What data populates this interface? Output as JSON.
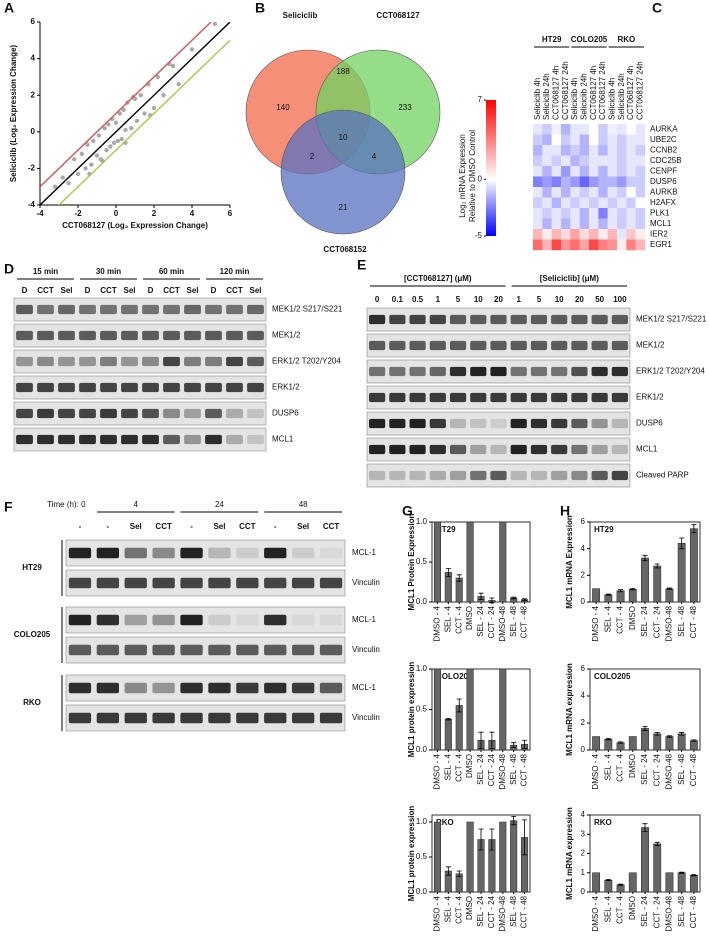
{
  "chart_data": [
    {
      "type": "scatter",
      "panel": "A",
      "x_label": "CCT068127 (Log₂ Expression Change)",
      "y_label": "Seliciclib (Log₂ Expression Change)",
      "xlim": [
        -4,
        6
      ],
      "ylim": [
        -4,
        6
      ],
      "xticks": [
        -4,
        -2,
        0,
        2,
        4,
        6
      ],
      "yticks": [
        -4,
        -2,
        0,
        2,
        4,
        6
      ],
      "color": "#aaaaaa",
      "x": [
        -2.8,
        -2.5,
        -2.2,
        -2,
        -1.8,
        -1.6,
        -1.5,
        -1.3,
        -1.2,
        -1,
        -0.9,
        -0.8,
        -0.6,
        -0.5,
        -0.4,
        -0.3,
        -0.2,
        -0.1,
        0,
        0.1,
        0.2,
        0.3,
        0.4,
        0.5,
        0.6,
        0.8,
        1,
        1.1,
        1.3,
        1.5,
        1.7,
        2,
        2.2,
        2.5,
        3,
        3.3,
        4,
        -0.7,
        0.9,
        1.8,
        -1.4,
        0.5,
        2.8,
        5.2,
        -3.2
      ],
      "y": [
        -2.5,
        -2.8,
        -1.5,
        -2.3,
        -1.2,
        -2,
        -0.7,
        -1.8,
        -0.5,
        -1.3,
        -0.2,
        -1.5,
        0.2,
        -1,
        0.4,
        -0.8,
        0.7,
        -0.6,
        0.5,
        -0.5,
        1,
        -0.4,
        1.2,
        0.1,
        1.6,
        0.2,
        1.8,
        0.6,
        2,
        1,
        2.6,
        1.3,
        3,
        2,
        3.6,
        2.6,
        4.5,
        -1.6,
        1.9,
        0.9,
        -2.3,
        -0.6,
        3.7,
        5.9,
        -3
      ],
      "lines": [
        {
          "color": "#d9534f",
          "slope": 1,
          "intercept": 1
        },
        {
          "color": "#000000",
          "slope": 1,
          "intercept": 0
        },
        {
          "color": "#b5c24a",
          "slope": 1,
          "intercept": -1
        }
      ]
    },
    {
      "type": "venn",
      "panel": "B",
      "sets": [
        {
          "name": "Seliciclib",
          "color": "#f26a4b"
        },
        {
          "name": "CCT068127",
          "color": "#72d160"
        },
        {
          "name": "CCT068152",
          "color": "#5870c0"
        }
      ],
      "regions": [
        {
          "sets": [
            "Seliciclib"
          ],
          "value": 140
        },
        {
          "sets": [
            "Seliciclib",
            "CCT068127"
          ],
          "value": 188
        },
        {
          "sets": [
            "CCT068127"
          ],
          "value": 233
        },
        {
          "sets": [
            "Seliciclib",
            "CCT068127",
            "CCT068152"
          ],
          "value": 10
        },
        {
          "sets": [
            "Seliciclib",
            "CCT068152"
          ],
          "value": 2
        },
        {
          "sets": [
            "CCT068127",
            "CCT068152"
          ],
          "value": 4
        },
        {
          "sets": [
            "CCT068152"
          ],
          "value": 21
        }
      ]
    },
    {
      "type": "heatmap",
      "panel": "C",
      "groups": [
        "HT29",
        "COLO205",
        "RKO"
      ],
      "columns": [
        "Seliciclib 4h",
        "Seliciclib 24h",
        "CCT068127 4h",
        "CCT068127 24h",
        "Seliciclib 4h",
        "Seliciclib 24h",
        "CCT068127 4h",
        "CCT068127 24h",
        "Seliciclib 4h",
        "Seliciclib 24h",
        "CCT068127 4h",
        "CCT068127 24h"
      ],
      "rows": [
        "AURKA",
        "UBE2C",
        "CCNB2",
        "CDC25B",
        "CENPF",
        "DUSP6",
        "AURKB",
        "H2AFX",
        "PLK1",
        "MCL1",
        "IER2",
        "EGR1"
      ],
      "values": [
        [
          -0.5,
          -1,
          -0.3,
          -1.5,
          -0.5,
          -0.5,
          0,
          -1,
          -0.3,
          -0.5,
          0,
          -0.5
        ],
        [
          -1,
          -1.5,
          0,
          -1,
          -0.5,
          -1.5,
          0,
          -1,
          -0.5,
          -1,
          -0.5,
          -0.5
        ],
        [
          -1.5,
          -0.5,
          -0.5,
          -1.5,
          -1,
          -1.5,
          -0.5,
          -1.5,
          -0.5,
          -1,
          -0.5,
          -1
        ],
        [
          -1,
          -0.5,
          -1,
          -0.5,
          -1.5,
          -1,
          -0.5,
          -0.5,
          -0.5,
          -1,
          -0.5,
          -0.5
        ],
        [
          -0.5,
          -1.5,
          -0.5,
          -2,
          -0.5,
          -1.5,
          -0.5,
          -1.5,
          -0.5,
          -1,
          -0.5,
          -1
        ],
        [
          -2.5,
          -2,
          -2.5,
          -1.5,
          -2,
          -3,
          -2,
          -1.5,
          -1.5,
          -2,
          -1,
          -1
        ],
        [
          -0.5,
          -1.5,
          -0.5,
          -1.5,
          -0.5,
          -1,
          -0.5,
          -1.5,
          -0.5,
          -1,
          0,
          -1
        ],
        [
          -1,
          -0.5,
          -1.5,
          -0.5,
          -1,
          -0.5,
          -1,
          -0.5,
          -1,
          -0.5,
          -1,
          0
        ],
        [
          -0.5,
          -1,
          -0.5,
          -1,
          -0.5,
          -1.5,
          -0.5,
          -2.5,
          -0.5,
          -1,
          -0.5,
          -1
        ],
        [
          -0.5,
          -1.5,
          -0.5,
          -1.5,
          -0.5,
          -1.5,
          -0.5,
          -1.5,
          -0.5,
          -1,
          -0.5,
          -1
        ],
        [
          2,
          0.5,
          2,
          1,
          2.5,
          1,
          2,
          0.5,
          2,
          -0.5,
          1.5,
          0.5
        ],
        [
          4,
          2,
          5,
          3,
          4,
          2.5,
          5,
          3.5,
          3,
          0.5,
          3.5,
          2
        ]
      ],
      "zlim": [
        -5,
        7
      ],
      "zticks": [
        7,
        0,
        -5
      ],
      "colors": [
        "#0000ff",
        "#ffffff",
        "#ff0000"
      ],
      "colorbar_label": [
        "Log₂ mRNA Expression",
        "Relative to DMSO Control"
      ]
    },
    {
      "type": "bar",
      "panel": "G",
      "title": "HT29",
      "y_label": "MCL1 Protein Expression",
      "categories": [
        "DMSO - 4",
        "SEL - 4",
        "CCT - 4",
        "DMSO",
        "SEL - 24",
        "CCT - 24",
        "DMSO-48",
        "SEL - 48",
        "CCT - 48"
      ],
      "values": [
        1,
        0.37,
        0.3,
        1,
        0.07,
        0.02,
        1,
        0.05,
        0.03
      ],
      "errors": [
        0,
        0.05,
        0.04,
        0,
        0.04,
        0.03,
        0,
        0.01,
        0.01
      ],
      "ylim": [
        0,
        1
      ],
      "yticks": [
        {
          "value": 0,
          "label": "0.0"
        },
        {
          "value": 0.5,
          "label": "0.5"
        },
        {
          "value": 1,
          "label": "1.0"
        }
      ],
      "color": "#666666"
    },
    {
      "type": "bar",
      "title": "COLO205",
      "y_label": "MCL1 protein expression",
      "categories": [
        "DMSO - 4",
        "SEL - 4",
        "CCT - 4",
        "DMSO",
        "SEL - 24",
        "CCT - 24",
        "DMSO-48",
        "SEL - 48",
        "CCT - 48"
      ],
      "values": [
        1,
        0.38,
        0.55,
        1,
        0.12,
        0.12,
        1,
        0.06,
        0.07
      ],
      "errors": [
        0,
        0.01,
        0.08,
        0,
        0.1,
        0.1,
        0,
        0.03,
        0.05
      ],
      "ylim": [
        0,
        1
      ],
      "yticks": [
        {
          "value": 0,
          "label": "0.0"
        },
        {
          "value": 0.5,
          "label": "0.5"
        },
        {
          "value": 1,
          "label": "1.0"
        }
      ],
      "color": "#666666"
    },
    {
      "type": "bar",
      "title": "RKO",
      "y_label": "MCL1 protein expression",
      "categories": [
        "DMSO - 4",
        "SEL - 4",
        "CCT - 4",
        "DMSO",
        "SEL - 24",
        "CCT - 24",
        "DMSO-48",
        "SEL - 48",
        "CCT - 48"
      ],
      "values": [
        1,
        0.3,
        0.26,
        1,
        0.75,
        0.75,
        1,
        1.02,
        0.78
      ],
      "errors": [
        0,
        0.06,
        0.04,
        0,
        0.15,
        0.15,
        0,
        0.06,
        0.25
      ],
      "ylim": [
        0,
        1.1
      ],
      "yticks": [
        {
          "value": 0,
          "label": "0.0"
        },
        {
          "value": 0.5,
          "label": "0.5"
        },
        {
          "value": 1,
          "label": "1.0"
        }
      ],
      "color": "#666666"
    },
    {
      "type": "bar",
      "panel": "H",
      "title": "HT29",
      "y_label": "MCL1 mRNA Expression",
      "categories": [
        "DMSO - 4",
        "SEL - 4",
        "CCT - 4",
        "DMSO",
        "SEL - 24",
        "CCT - 24",
        "DMSO-48",
        "SEL - 48",
        "CCT - 48"
      ],
      "values": [
        1,
        0.55,
        0.85,
        0.95,
        3.3,
        2.7,
        1,
        4.4,
        5.5
      ],
      "errors": [
        0,
        0.05,
        0.08,
        0.05,
        0.2,
        0.15,
        0.05,
        0.4,
        0.3
      ],
      "ylim": [
        0,
        6
      ],
      "yticks": [
        0,
        2,
        4,
        6
      ],
      "color": "#666666"
    },
    {
      "type": "bar",
      "title": "COLO205",
      "y_label": "MCL1 mRNA expression",
      "categories": [
        "DMSO - 4",
        "SEL - 4",
        "CCT - 4",
        "DMSO",
        "SEL - 24",
        "CCT - 24",
        "DMSO-48",
        "SEL - 48",
        "CCT - 48"
      ],
      "values": [
        1,
        0.8,
        0.55,
        1,
        1.6,
        1.2,
        1,
        1.2,
        0.7
      ],
      "errors": [
        0,
        0.05,
        0.05,
        0,
        0.15,
        0.1,
        0.05,
        0.1,
        0.05
      ],
      "ylim": [
        0,
        6
      ],
      "yticks": [
        0,
        2,
        4,
        6
      ],
      "color": "#666666"
    },
    {
      "type": "bar",
      "title": "RKO",
      "y_label": "MCL1 mRNA expression",
      "categories": [
        "DMSO - 4",
        "SEL - 4",
        "CCT - 4",
        "DMSO",
        "SEL - 24",
        "CCT - 24",
        "DMSO-48",
        "SEL - 48",
        "CCT - 48"
      ],
      "values": [
        1,
        0.62,
        0.38,
        1,
        3.35,
        2.5,
        1,
        1,
        0.87
      ],
      "errors": [
        0,
        0.03,
        0.03,
        0,
        0.2,
        0.08,
        0,
        0.03,
        0.03
      ],
      "ylim": [
        0,
        4
      ],
      "yticks": [
        0,
        1,
        2,
        3,
        4
      ],
      "color": "#666666"
    }
  ],
  "blots": {
    "D": {
      "panel": "D",
      "groups": [
        "15 min",
        "30 min",
        "60 min",
        "120 min"
      ],
      "lanes": [
        "D",
        "CCT",
        "Sel",
        "D",
        "CCT",
        "Sel",
        "D",
        "CCT",
        "Sel",
        "D",
        "CCT",
        "Sel"
      ],
      "rows": [
        {
          "label": "MEK1/2 S217/S221",
          "intensity": [
            0.6,
            0.5,
            0.55,
            0.5,
            0.5,
            0.5,
            0.5,
            0.5,
            0.55,
            0.5,
            0.5,
            0.55
          ]
        },
        {
          "label": "MEK1/2",
          "intensity": [
            0.6,
            0.6,
            0.6,
            0.6,
            0.6,
            0.6,
            0.6,
            0.6,
            0.6,
            0.6,
            0.6,
            0.6
          ]
        },
        {
          "label": "ERK1/2 T202/Y204",
          "intensity": [
            0.35,
            0.4,
            0.35,
            0.35,
            0.45,
            0.35,
            0.4,
            0.7,
            0.45,
            0.45,
            0.7,
            0.6
          ]
        },
        {
          "label": "ERK1/2",
          "intensity": [
            0.7,
            0.7,
            0.7,
            0.7,
            0.7,
            0.7,
            0.7,
            0.7,
            0.7,
            0.7,
            0.7,
            0.7
          ]
        },
        {
          "label": "DUSP6",
          "intensity": [
            0.7,
            0.75,
            0.7,
            0.7,
            0.75,
            0.7,
            0.65,
            0.4,
            0.3,
            0.6,
            0.25,
            0.15
          ]
        },
        {
          "label": "MCL1",
          "intensity": [
            0.8,
            0.8,
            0.8,
            0.8,
            0.8,
            0.8,
            0.8,
            0.6,
            0.35,
            0.8,
            0.25,
            0.15
          ]
        }
      ]
    },
    "E": {
      "panel": "E",
      "groups": [
        "[CCT068127] (μM)",
        "[Seliciclib] (μM)"
      ],
      "lanes": [
        0,
        0.1,
        0.5,
        1,
        5,
        10,
        20,
        1,
        5,
        10,
        20,
        50,
        100
      ],
      "rows": [
        {
          "label": "MEK1/2 S217/S221",
          "intensity": [
            0.8,
            0.7,
            0.7,
            0.7,
            0.6,
            0.6,
            0.6,
            0.6,
            0.6,
            0.6,
            0.6,
            0.6,
            0.6
          ]
        },
        {
          "label": "MEK1/2",
          "intensity": [
            0.6,
            0.6,
            0.6,
            0.6,
            0.6,
            0.6,
            0.6,
            0.6,
            0.6,
            0.6,
            0.6,
            0.6,
            0.6
          ]
        },
        {
          "label": "ERK1/2 T202/Y204",
          "intensity": [
            0.5,
            0.5,
            0.5,
            0.55,
            0.8,
            0.85,
            0.85,
            0.5,
            0.5,
            0.5,
            0.65,
            0.8,
            0.8
          ]
        },
        {
          "label": "ERK1/2",
          "intensity": [
            0.75,
            0.75,
            0.75,
            0.75,
            0.75,
            0.75,
            0.75,
            0.75,
            0.75,
            0.75,
            0.75,
            0.75,
            0.75
          ]
        },
        {
          "label": "DUSP6",
          "intensity": [
            0.85,
            0.85,
            0.85,
            0.75,
            0.2,
            0.15,
            0.1,
            0.85,
            0.8,
            0.75,
            0.6,
            0.35,
            0.2
          ]
        },
        {
          "label": "MCL1",
          "intensity": [
            0.85,
            0.85,
            0.85,
            0.8,
            0.6,
            0.3,
            0.2,
            0.85,
            0.8,
            0.75,
            0.5,
            0.3,
            0.2
          ]
        },
        {
          "label": "Cleaved PARP",
          "intensity": [
            0.2,
            0.2,
            0.2,
            0.25,
            0.3,
            0.5,
            0.6,
            0.2,
            0.2,
            0.3,
            0.4,
            0.6,
            0.7
          ]
        }
      ]
    },
    "F": {
      "panel": "F",
      "groups": [
        "Time (h): 0",
        "4",
        "24",
        "48"
      ],
      "lanes": [
        "-",
        "-",
        "Sel",
        "CCT",
        "-",
        "Sel",
        "CCT",
        "-",
        "Sel",
        "CCT"
      ],
      "cell_lines": [
        {
          "name": "HT29",
          "rows": [
            {
              "label": "MCL-1",
              "intensity": [
                0.85,
                0.85,
                0.5,
                0.4,
                0.85,
                0.2,
                0.1,
                0.85,
                0.1,
                0.05
              ]
            },
            {
              "label": "Vinculin",
              "intensity": [
                0.7,
                0.7,
                0.7,
                0.7,
                0.7,
                0.7,
                0.7,
                0.7,
                0.7,
                0.7
              ]
            }
          ]
        },
        {
          "name": "COLO205",
          "rows": [
            {
              "label": "MCL-1",
              "intensity": [
                0.85,
                0.8,
                0.3,
                0.35,
                0.85,
                0.1,
                0.05,
                0.8,
                0.05,
                0.05
              ]
            },
            {
              "label": "Vinculin",
              "intensity": [
                0.6,
                0.6,
                0.6,
                0.6,
                0.6,
                0.6,
                0.6,
                0.6,
                0.6,
                0.6
              ]
            }
          ]
        },
        {
          "name": "RKO",
          "rows": [
            {
              "label": "MCL-1",
              "intensity": [
                0.8,
                0.8,
                0.4,
                0.35,
                0.8,
                0.8,
                0.75,
                0.8,
                0.75,
                0.6
              ]
            },
            {
              "label": "Vinculin",
              "intensity": [
                0.75,
                0.75,
                0.75,
                0.75,
                0.75,
                0.75,
                0.75,
                0.75,
                0.75,
                0.75
              ]
            }
          ]
        }
      ]
    }
  }
}
